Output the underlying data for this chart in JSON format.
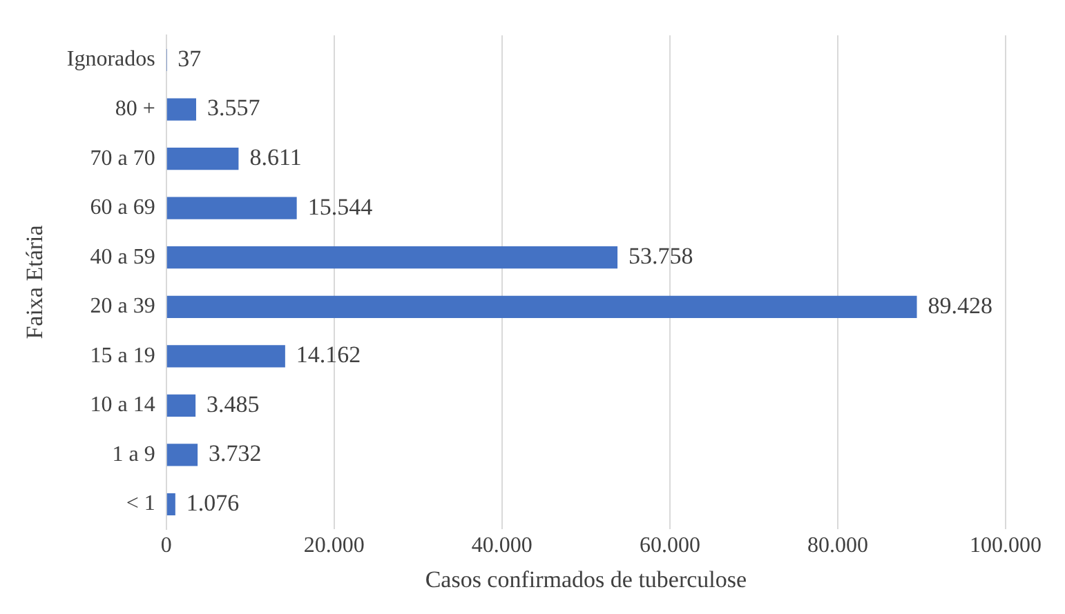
{
  "chart_data": {
    "type": "bar",
    "orientation": "horizontal",
    "xlabel": "Casos confirmados de tuberculose",
    "ylabel": "Faixa Etária",
    "categories": [
      "Ignorados",
      "80 +",
      "70 a 70",
      "60 a 69",
      "40 a 59",
      "20 a 39",
      "15 a 19",
      "10 a 14",
      "1 a 9",
      "< 1"
    ],
    "values": [
      37,
      3557,
      8611,
      15544,
      53758,
      89428,
      14162,
      3485,
      3732,
      1076
    ],
    "value_labels": [
      "37",
      "3.557",
      "8.611",
      "15.544",
      "53.758",
      "89.428",
      "14.162",
      "3.485",
      "3.732",
      "1.076"
    ],
    "color": "#4472c4",
    "xlim": [
      0,
      100000
    ],
    "xticks": [
      0,
      {
        "value": 20000,
        "label": "20.000"
      },
      {
        "value": 40000,
        "label": "40.000"
      },
      {
        "value": 60000,
        "label": "60.000"
      },
      {
        "value": 80000,
        "label": "80.000"
      },
      {
        "value": 100000,
        "label": "100.000"
      }
    ],
    "grid": "x"
  }
}
